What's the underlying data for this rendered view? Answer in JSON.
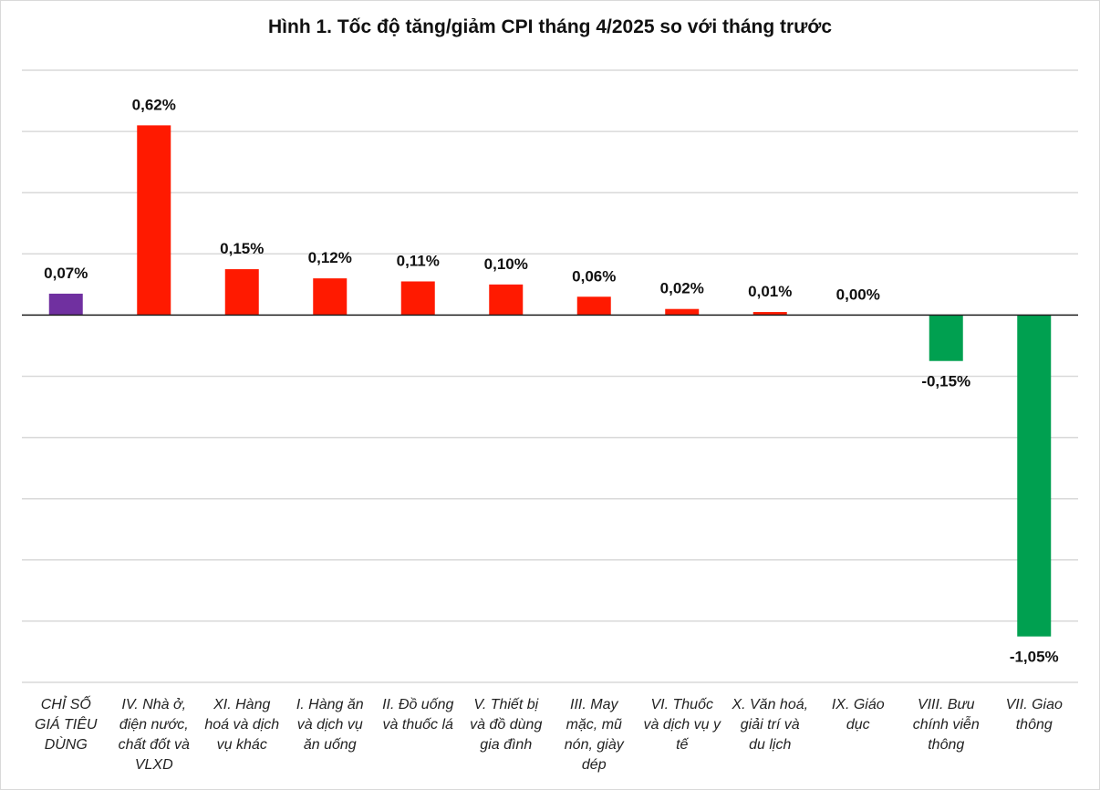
{
  "chart_data": {
    "type": "bar",
    "title": "Hình 1. Tốc độ tăng/giảm CPI tháng 4/2025 so với tháng trước",
    "xlabel": "",
    "ylabel": "",
    "ylim": [
      -1.2,
      0.8
    ],
    "grid": true,
    "legend": "none",
    "categories": [
      "CHỈ SỐ GIÁ TIÊU DÙNG",
      "IV. Nhà ở, điện nước, chất đốt và VLXD",
      "XI. Hàng hoá và dịch vụ khác",
      "I. Hàng ăn và dịch vụ ăn uống",
      "II. Đồ uống và thuốc lá",
      "V. Thiết bị và đồ dùng gia đình",
      "III. May mặc, mũ nón, giày dép",
      "VI. Thuốc và dịch vụ y tế",
      "X. Văn hoá, giải trí và du lịch",
      "IX. Giáo dục",
      "VIII. Bưu chính viễn thông",
      "VII. Giao thông"
    ],
    "category_lines": [
      [
        "CHỈ SỐ",
        "GIÁ TIÊU",
        "DÙNG"
      ],
      [
        "IV. Nhà ở,",
        "điện nước,",
        "chất đốt và",
        "VLXD"
      ],
      [
        "XI. Hàng",
        "hoá và dịch",
        "vụ khác"
      ],
      [
        "I. Hàng ăn",
        "và dịch vụ",
        "ăn uống"
      ],
      [
        "II. Đồ uống",
        "và thuốc lá"
      ],
      [
        "V. Thiết bị",
        "và đồ dùng",
        "gia đình"
      ],
      [
        "III. May",
        "mặc, mũ",
        "nón, giày",
        "dép"
      ],
      [
        "VI. Thuốc",
        "và dịch vụ y",
        "tế"
      ],
      [
        "X. Văn hoá,",
        "giải trí và",
        "du lịch"
      ],
      [
        "IX. Giáo",
        "dục"
      ],
      [
        "VIII. Bưu",
        "chính viễn",
        "thông"
      ],
      [
        "VII. Giao",
        "thông"
      ]
    ],
    "values": [
      0.07,
      0.62,
      0.15,
      0.12,
      0.11,
      0.1,
      0.06,
      0.02,
      0.01,
      0.0,
      -0.15,
      -1.05
    ],
    "labels": [
      "0,07%",
      "0,62%",
      "0,15%",
      "0,12%",
      "0,11%",
      "0,10%",
      "0,06%",
      "0,02%",
      "0,01%",
      "0,00%",
      "-0,15%",
      "-1,05%"
    ],
    "colors": [
      "#7030a0",
      "#ff1a00",
      "#ff1a00",
      "#ff1a00",
      "#ff1a00",
      "#ff1a00",
      "#ff1a00",
      "#ff1a00",
      "#ff1a00",
      "#ff1a00",
      "#00a050",
      "#00a050"
    ]
  }
}
